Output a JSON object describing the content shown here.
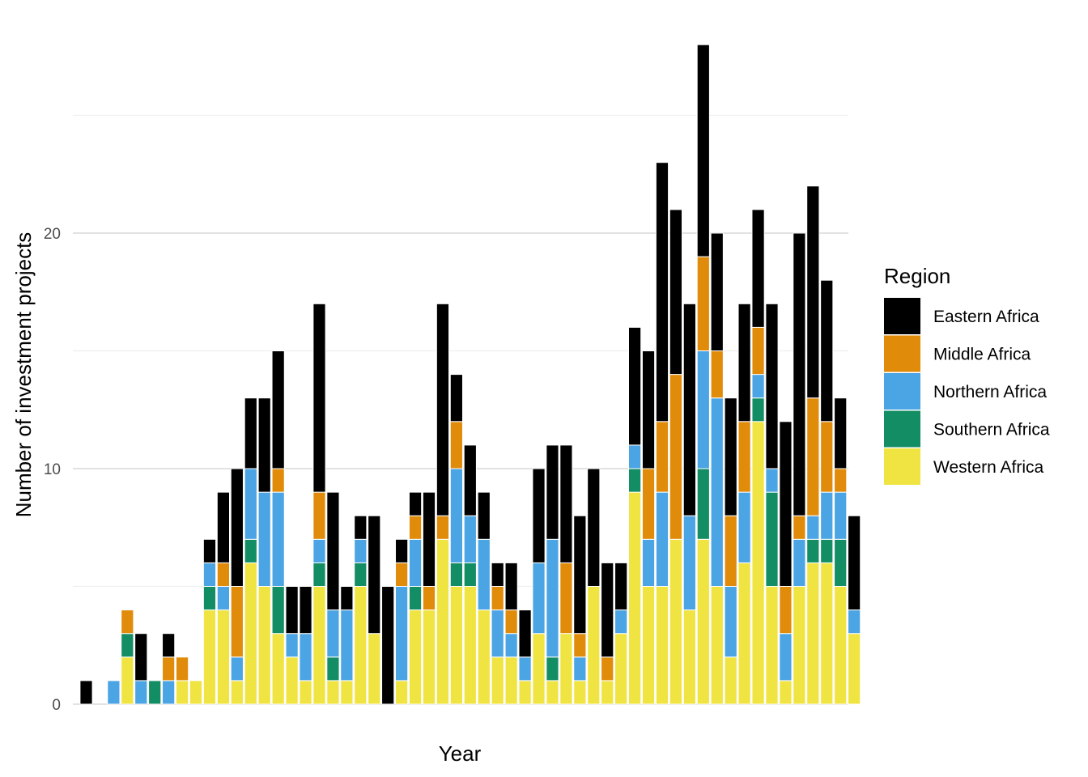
{
  "chart_data": {
    "type": "bar",
    "stacked": true,
    "title": "",
    "xlabel": "Year",
    "ylabel": "Number of investment projects",
    "ylim": [
      0,
      28
    ],
    "yticks": [
      0,
      10,
      20
    ],
    "grid": true,
    "x_tick_labels_shown": false,
    "legend": {
      "title": "Region",
      "placement": "right"
    },
    "series": [
      {
        "name": "Western Africa",
        "color": "#F0E442",
        "values": [
          0,
          0,
          0,
          2,
          0,
          0,
          0,
          1,
          1,
          4,
          4,
          1,
          6,
          5,
          3,
          2,
          1,
          5,
          1,
          1,
          5,
          3,
          0,
          1,
          4,
          4,
          7,
          5,
          5,
          4,
          2,
          2,
          1,
          3,
          1,
          3,
          1,
          5,
          1,
          3,
          9,
          5,
          5,
          7,
          4,
          7,
          5,
          2,
          6,
          12,
          5,
          1,
          5,
          6,
          6,
          5,
          3
        ]
      },
      {
        "name": "Southern Africa",
        "color": "#138D63",
        "values": [
          0,
          0,
          0,
          1,
          0,
          1,
          0,
          0,
          0,
          1,
          0,
          0,
          1,
          0,
          2,
          0,
          0,
          1,
          1,
          0,
          1,
          0,
          0,
          0,
          1,
          0,
          0,
          1,
          1,
          0,
          0,
          0,
          0,
          0,
          1,
          0,
          0,
          0,
          0,
          0,
          1,
          0,
          0,
          0,
          0,
          3,
          0,
          0,
          0,
          1,
          4,
          0,
          0,
          1,
          1,
          2,
          0
        ]
      },
      {
        "name": "Northern Africa",
        "color": "#4BA4E3",
        "values": [
          0,
          0,
          1,
          0,
          1,
          0,
          1,
          0,
          0,
          1,
          1,
          1,
          3,
          4,
          4,
          1,
          2,
          1,
          2,
          3,
          1,
          0,
          0,
          4,
          2,
          0,
          0,
          4,
          2,
          3,
          2,
          1,
          1,
          3,
          5,
          0,
          1,
          0,
          0,
          1,
          1,
          2,
          4,
          0,
          4,
          5,
          8,
          3,
          3,
          1,
          1,
          2,
          2,
          1,
          2,
          2,
          1
        ]
      },
      {
        "name": "Middle Africa",
        "color": "#E18B0B",
        "values": [
          0,
          0,
          0,
          1,
          0,
          0,
          1,
          1,
          0,
          0,
          1,
          3,
          0,
          0,
          1,
          0,
          0,
          2,
          0,
          0,
          0,
          0,
          0,
          1,
          1,
          1,
          1,
          2,
          0,
          0,
          1,
          1,
          0,
          0,
          0,
          3,
          1,
          0,
          1,
          0,
          0,
          3,
          3,
          7,
          0,
          4,
          2,
          3,
          3,
          2,
          0,
          2,
          1,
          5,
          3,
          1,
          0
        ]
      },
      {
        "name": "Eastern Africa",
        "color": "#000000",
        "values": [
          1,
          0,
          0,
          0,
          2,
          0,
          1,
          0,
          0,
          1,
          3,
          5,
          3,
          4,
          5,
          2,
          2,
          8,
          5,
          1,
          1,
          5,
          5,
          1,
          1,
          4,
          9,
          2,
          3,
          2,
          1,
          2,
          2,
          4,
          4,
          5,
          5,
          5,
          4,
          2,
          5,
          5,
          11,
          7,
          9,
          9,
          5,
          5,
          5,
          5,
          7,
          7,
          12,
          9,
          6,
          3,
          4
        ]
      }
    ]
  }
}
